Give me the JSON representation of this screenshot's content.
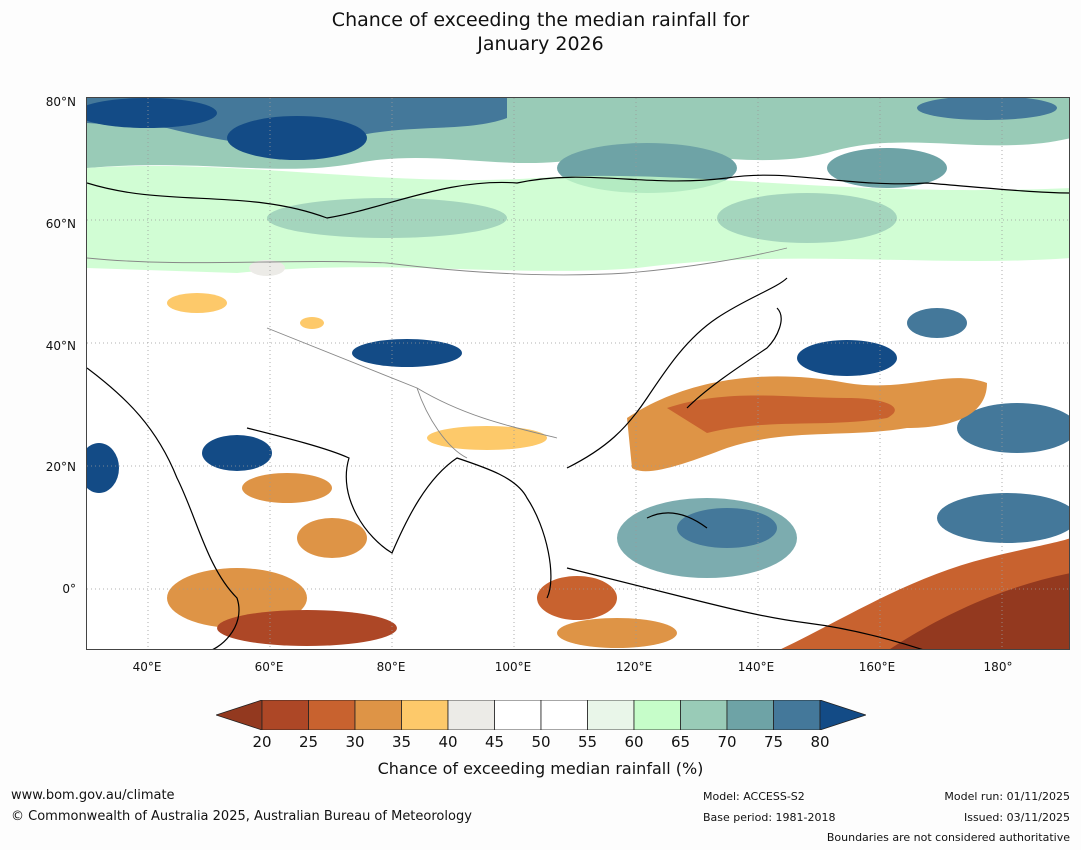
{
  "title": {
    "line1": "Chance of exceeding the median rainfall for",
    "line2": "January 2026"
  },
  "map": {
    "lat_labels": [
      "80°N",
      "60°N",
      "40°N",
      "20°N",
      "0°"
    ],
    "lat_values": [
      80,
      60,
      40,
      20,
      0
    ],
    "lon_labels": [
      "40°E",
      "60°E",
      "80°E",
      "100°E",
      "120°E",
      "140°E",
      "160°E",
      "180°"
    ],
    "lon_values": [
      40,
      60,
      80,
      100,
      120,
      140,
      160,
      180
    ],
    "lon_range": [
      30,
      191
    ],
    "lat_range": [
      -10,
      80
    ]
  },
  "colorbar": {
    "label": "Chance of exceeding median rainfall (%)",
    "ticks": [
      "20",
      "25",
      "30",
      "35",
      "40",
      "45",
      "50",
      "55",
      "60",
      "65",
      "70",
      "75",
      "80"
    ],
    "under_color": "#93391f",
    "over_color": "#134b86",
    "colors": [
      "#ad4726",
      "#c8622f",
      "#de9446",
      "#fdc96a",
      "#ecebe7",
      "#ffffff",
      "#ffffff",
      "#e9f6e9",
      "#c6fdc9",
      "#99cbb7",
      "#6ea3a6",
      "#44789a"
    ]
  },
  "footer": {
    "website": "www.bom.gov.au/climate",
    "copyright": "© Commonwealth of Australia 2025, Australian Bureau of Meteorology",
    "model": "Model: ACCESS-S2",
    "base_period": "Base period: 1981-2018",
    "model_run": "Model run: 01/11/2025",
    "issued": "Issued: 03/11/2025",
    "disclaimer": "Boundaries are not considered authoritative"
  }
}
